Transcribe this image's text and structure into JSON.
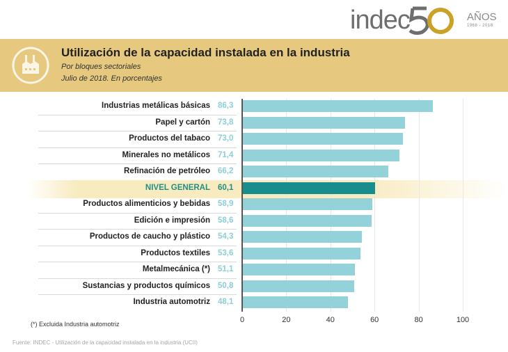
{
  "header": {
    "logo_word": "indec",
    "logo_anos": "AÑOS",
    "logo_years": "1968 - 2018",
    "title": "Utilización de la capacidad instalada en la industria",
    "subtitle_1": "Por bloques sectoriales",
    "subtitle_2": "Julio de 2018. En porcentajes",
    "icon": "factory-icon"
  },
  "colors": {
    "banner": "#e6c97f",
    "bar": "#92d2d8",
    "bar_highlight": "#178d8d",
    "value_text": "#8ccfd6",
    "highlight_text": "#1f8f85",
    "logo_gold": "#c9a227"
  },
  "chart_data": {
    "type": "bar",
    "orientation": "horizontal",
    "title": "Utilización de la capacidad instalada en la industria",
    "subtitle": "Por bloques sectoriales. Julio de 2018. En porcentajes",
    "categories": [
      "Industrias metálicas básicas",
      "Papel y cartón",
      "Productos del tabaco",
      "Minerales no metálicos",
      "Refinación de petróleo",
      "NIVEL GENERAL",
      "Productos alimenticios y bebidas",
      "Edición e impresión",
      "Productos de caucho y plástico",
      "Productos textiles",
      "Metalmecánica (*)",
      "Sustancias y productos químicos",
      "Industria automotriz"
    ],
    "values": [
      86.3,
      73.8,
      73.0,
      71.4,
      66.2,
      60.1,
      58.9,
      58.6,
      54.3,
      53.6,
      51.1,
      50.8,
      48.1
    ],
    "value_labels": [
      "86,3",
      "73,8",
      "73,0",
      "71,4",
      "66,2",
      "60,1",
      "58,9",
      "58,6",
      "54,3",
      "53,6",
      "51,1",
      "50,8",
      "48,1"
    ],
    "highlight_category": "NIVEL GENERAL",
    "xlim": [
      0,
      100
    ],
    "xticks": [
      0,
      20,
      40,
      60,
      80,
      100
    ],
    "xtick_labels": [
      "0",
      "20",
      "40",
      "60",
      "80",
      "100"
    ],
    "grid": true,
    "xlabel": "",
    "ylabel": ""
  },
  "footnote": "(*) Excluida Industria automotriz",
  "source": "Fuente:   INDEC - Utilización de la capacidad instalada en la industria (UCII)"
}
